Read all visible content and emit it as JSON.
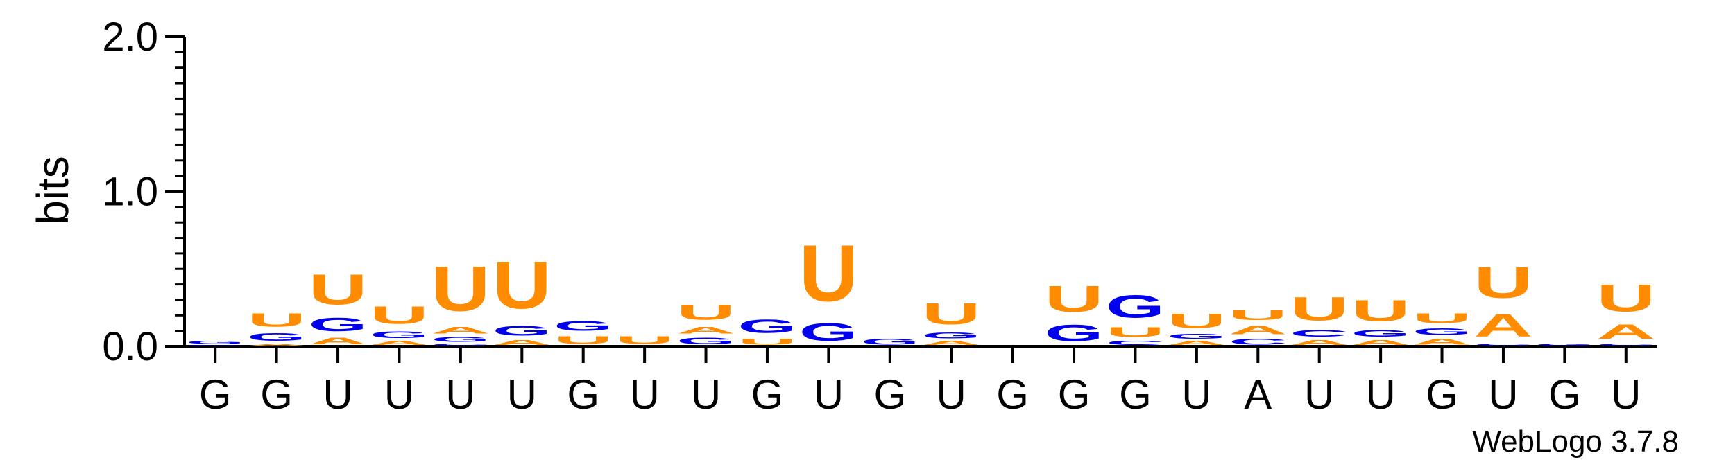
{
  "chart_data": {
    "type": "sequence-logo",
    "ylabel": "bits",
    "ylim": [
      0,
      2.0
    ],
    "yticks": [
      {
        "value": 0.0,
        "label": "0.0"
      },
      {
        "value": 1.0,
        "label": "1.0"
      },
      {
        "value": 2.0,
        "label": "2.0"
      }
    ],
    "colors": {
      "U": "#ff8c00",
      "A": "#ff8c00",
      "G": "#0000ee",
      "C": "#0000ee"
    },
    "positions": [
      {
        "label": "G",
        "stack": [
          {
            "letter": "C",
            "bits": 0.01
          },
          {
            "letter": "G",
            "bits": 0.03
          }
        ]
      },
      {
        "label": "G",
        "stack": [
          {
            "letter": "A",
            "bits": 0.02
          },
          {
            "letter": "G",
            "bits": 0.08
          },
          {
            "letter": "U",
            "bits": 0.14
          }
        ]
      },
      {
        "label": "U",
        "stack": [
          {
            "letter": "A",
            "bits": 0.07
          },
          {
            "letter": "G",
            "bits": 0.14
          },
          {
            "letter": "U",
            "bits": 0.31
          }
        ]
      },
      {
        "label": "U",
        "stack": [
          {
            "letter": "A",
            "bits": 0.04
          },
          {
            "letter": "G",
            "bits": 0.07
          },
          {
            "letter": "U",
            "bits": 0.18
          }
        ]
      },
      {
        "label": "U",
        "stack": [
          {
            "letter": "C",
            "bits": 0.02
          },
          {
            "letter": "G",
            "bits": 0.05
          },
          {
            "letter": "A",
            "bits": 0.07
          },
          {
            "letter": "U",
            "bits": 0.46
          }
        ]
      },
      {
        "label": "U",
        "stack": [
          {
            "letter": "A",
            "bits": 0.05
          },
          {
            "letter": "G",
            "bits": 0.1
          },
          {
            "letter": "U",
            "bits": 0.49
          }
        ]
      },
      {
        "label": "G",
        "stack": [
          {
            "letter": "U",
            "bits": 0.08
          },
          {
            "letter": "G",
            "bits": 0.1
          }
        ]
      },
      {
        "label": "U",
        "stack": [
          {
            "letter": "U",
            "bits": 0.08
          }
        ]
      },
      {
        "label": "U",
        "stack": [
          {
            "letter": "G",
            "bits": 0.07
          },
          {
            "letter": "A",
            "bits": 0.07
          },
          {
            "letter": "U",
            "bits": 0.16
          }
        ]
      },
      {
        "label": "G",
        "stack": [
          {
            "letter": "U",
            "bits": 0.06
          },
          {
            "letter": "G",
            "bits": 0.14
          }
        ]
      },
      {
        "label": "U",
        "stack": [
          {
            "letter": "G",
            "bits": 0.18
          },
          {
            "letter": "U",
            "bits": 0.58
          }
        ]
      },
      {
        "label": "G",
        "stack": [
          {
            "letter": "G",
            "bits": 0.06
          }
        ]
      },
      {
        "label": "U",
        "stack": [
          {
            "letter": "A",
            "bits": 0.04
          },
          {
            "letter": "G",
            "bits": 0.06
          },
          {
            "letter": "U",
            "bits": 0.22
          }
        ]
      },
      {
        "label": "G",
        "stack": []
      },
      {
        "label": "G",
        "stack": [
          {
            "letter": "G",
            "bits": 0.17
          },
          {
            "letter": "U",
            "bits": 0.27
          }
        ]
      },
      {
        "label": "G",
        "stack": [
          {
            "letter": "C",
            "bits": 0.04
          },
          {
            "letter": "U",
            "bits": 0.1
          },
          {
            "letter": "G",
            "bits": 0.23
          }
        ]
      },
      {
        "label": "U",
        "stack": [
          {
            "letter": "A",
            "bits": 0.04
          },
          {
            "letter": "G",
            "bits": 0.05
          },
          {
            "letter": "U",
            "bits": 0.15
          }
        ]
      },
      {
        "label": "A",
        "stack": [
          {
            "letter": "C",
            "bits": 0.06
          },
          {
            "letter": "A",
            "bits": 0.09
          },
          {
            "letter": "U",
            "bits": 0.1
          }
        ]
      },
      {
        "label": "U",
        "stack": [
          {
            "letter": "A",
            "bits": 0.05
          },
          {
            "letter": "C",
            "bits": 0.07
          },
          {
            "letter": "U",
            "bits": 0.24
          }
        ]
      },
      {
        "label": "U",
        "stack": [
          {
            "letter": "A",
            "bits": 0.05
          },
          {
            "letter": "G",
            "bits": 0.07
          },
          {
            "letter": "U",
            "bits": 0.22
          }
        ]
      },
      {
        "label": "G",
        "stack": [
          {
            "letter": "A",
            "bits": 0.06
          },
          {
            "letter": "G",
            "bits": 0.07
          },
          {
            "letter": "U",
            "bits": 0.1
          }
        ]
      },
      {
        "label": "U",
        "stack": [
          {
            "letter": "C",
            "bits": 0.02
          },
          {
            "letter": "A",
            "bits": 0.23
          },
          {
            "letter": "U",
            "bits": 0.32
          }
        ]
      },
      {
        "label": "G",
        "stack": [
          {
            "letter": "G",
            "bits": 0.02
          }
        ]
      },
      {
        "label": "U",
        "stack": [
          {
            "letter": "C",
            "bits": 0.02
          },
          {
            "letter": "A",
            "bits": 0.15
          },
          {
            "letter": "U",
            "bits": 0.28
          }
        ]
      }
    ],
    "credit": "WebLogo 3.7.8"
  }
}
